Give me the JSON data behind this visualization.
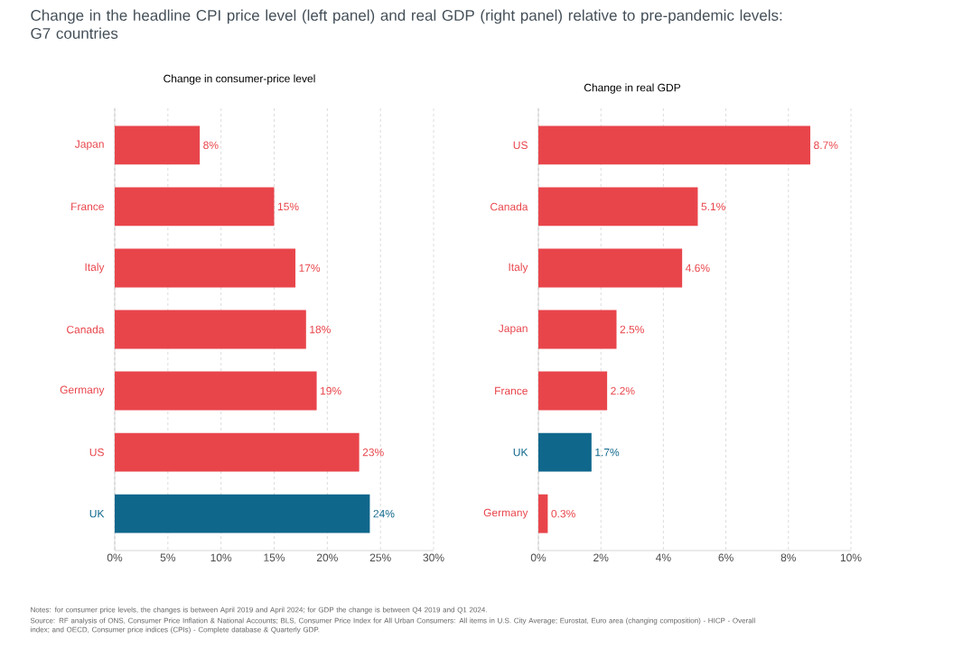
{
  "chart_data": [
    {
      "type": "bar",
      "orientation": "horizontal",
      "title": "Change in the headline CPI price level (left panel) and real GDP (right panel) relative to pre-pandemic levels: G7 countries",
      "subtitle": "Change in consumer-price level",
      "categories": [
        "Japan",
        "France",
        "Italy",
        "Canada",
        "Germany",
        "US",
        "UK"
      ],
      "values": [
        8,
        15,
        17,
        18,
        19,
        23,
        24
      ],
      "value_labels": [
        "8%",
        "15%",
        "17%",
        "18%",
        "19%",
        "23%",
        "24%"
      ],
      "colors": [
        "#e8454b",
        "#e8454b",
        "#e8454b",
        "#e8454b",
        "#e8454b",
        "#e8454b",
        "#0f678c"
      ],
      "xlim": [
        0,
        30
      ],
      "xticks": [
        {
          "value": 0,
          "label": "0%"
        },
        {
          "value": 5,
          "label": "5%"
        },
        {
          "value": 10,
          "label": "10%"
        },
        {
          "value": 15,
          "label": "15%"
        },
        {
          "value": 20,
          "label": "20%"
        },
        {
          "value": 25,
          "label": "25%"
        },
        {
          "value": 30,
          "label": "30%"
        }
      ],
      "grid": "x",
      "annotations": [
        "Notes: for consumer price levels, the changes is between April 2019 and April 2024; for GDP the change is between Q4 2019 and Q1 2024.",
        "Source: RF analysis of ONS, Consumer Price Inflation & National Accounts; BLS, Consumer Price Index for All Urban Consumers: All items in U.S. City Average; Eurostat, Euro area (changing composition) - HICP - Overall index; and OECD, Consumer price indices (CPIs) - Complete database & Quarterly GDP."
      ]
    },
    {
      "type": "bar",
      "orientation": "horizontal",
      "title": "Change in real GDP",
      "categories": [
        "US",
        "Canada",
        "Italy",
        "Japan",
        "France",
        "UK",
        "Germany"
      ],
      "values": [
        8.7,
        5.1,
        4.6,
        2.5,
        2.2,
        1.7,
        0.3
      ],
      "value_labels": [
        "8.7%",
        "5.1%",
        "4.6%",
        "2.5%",
        "2.2%",
        "1.7%",
        "0.3%"
      ],
      "colors": [
        "#e8454b",
        "#e8454b",
        "#e8454b",
        "#e8454b",
        "#e8454b",
        "#0f678c",
        "#e8454b"
      ],
      "xlim": [
        0,
        10
      ],
      "xticks": [
        {
          "value": 0,
          "label": "0%"
        },
        {
          "value": 2,
          "label": "2%"
        },
        {
          "value": 4,
          "label": "4%"
        },
        {
          "value": 6,
          "label": "6%"
        },
        {
          "value": 8,
          "label": "8%"
        },
        {
          "value": 10,
          "label": "10%"
        }
      ],
      "grid": "x"
    }
  ]
}
